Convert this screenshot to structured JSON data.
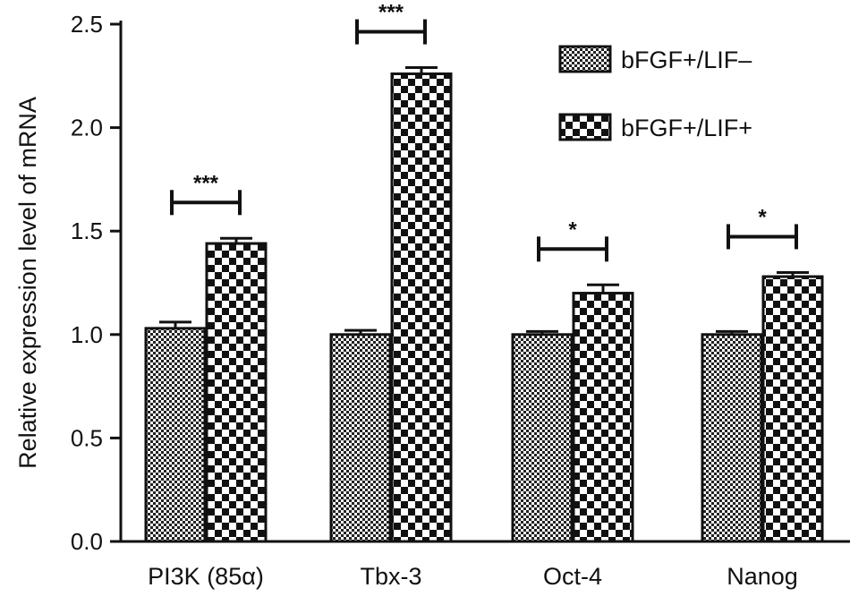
{
  "chart_data": {
    "type": "bar",
    "ylabel": "Relative expression level of mRNA",
    "ylim": [
      0,
      2.5
    ],
    "yticks": [
      "0.0",
      "0.5",
      "1.0",
      "1.5",
      "2.0",
      "2.5"
    ],
    "categories": [
      "PI3K (85α)",
      "Tbx-3",
      "Oct-4",
      "Nanog"
    ],
    "series": [
      {
        "name": "bFGF+/LIF–",
        "values": [
          1.03,
          1.0,
          1.0,
          1.0
        ],
        "errors": [
          0.03,
          0.02,
          0.015,
          0.015
        ]
      },
      {
        "name": "bFGF+/LIF+",
        "values": [
          1.44,
          2.26,
          1.2,
          1.28
        ],
        "errors": [
          0.025,
          0.03,
          0.04,
          0.02
        ]
      }
    ],
    "significance": [
      "***",
      "***",
      "*",
      "*"
    ],
    "legend_position": "top-right",
    "grid": false
  }
}
